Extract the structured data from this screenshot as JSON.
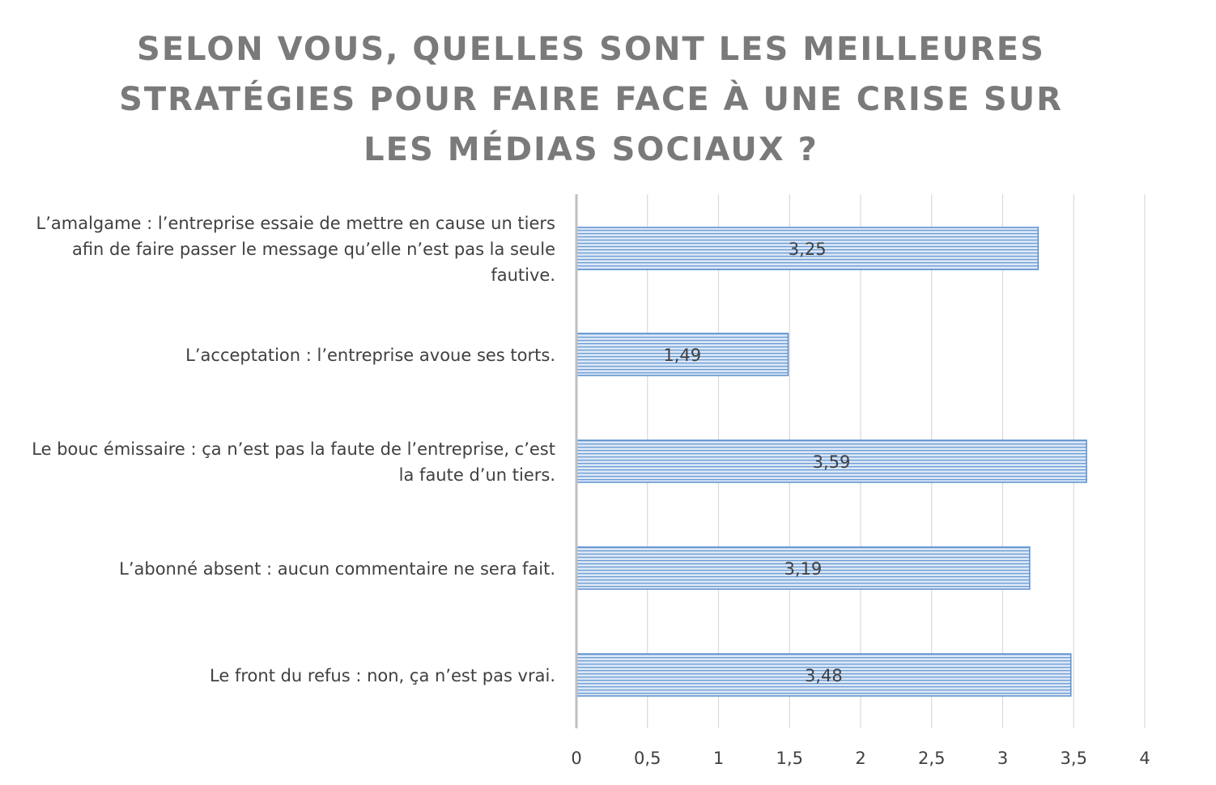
{
  "chart_data": {
    "type": "bar",
    "orientation": "horizontal",
    "title": "SELON VOUS, QUELLES SONT LES MEILLEURES STRATÉGIES POUR FAIRE FACE À UNE CRISE SUR LES MÉDIAS SOCIAUX ?",
    "title_lines": [
      "SELON VOUS, QUELLES SONT LES MEILLEURES",
      "STRATÉGIES POUR FAIRE FACE À UNE CRISE SUR",
      "LES MÉDIAS SOCIAUX ?"
    ],
    "categories": [
      "L’amalgame : l’entreprise essaie de mettre en cause un tiers afin de faire passer le message qu’elle n’est pas la seule fautive.",
      "L’acceptation : l’entreprise avoue ses torts.",
      "Le bouc émissaire : ça n’est pas la faute de l’entreprise, c’est la faute d’un tiers.",
      "L’abonné absent : aucun commentaire ne sera fait.",
      "Le front du refus : non, ça n’est pas vrai."
    ],
    "category_lines": [
      [
        "L’amalgame : l’entreprise essaie de mettre en cause un tiers",
        "afin de faire passer le message qu’elle n’est pas la seule",
        "fautive."
      ],
      [
        "L’acceptation : l’entreprise avoue ses torts."
      ],
      [
        "Le bouc émissaire : ça n’est pas la faute de l’entreprise, c’est",
        "la faute d’un tiers."
      ],
      [
        "L’abonné absent : aucun commentaire ne sera fait."
      ],
      [
        "Le front du refus : non, ça n’est pas vrai."
      ]
    ],
    "values": [
      3.25,
      1.49,
      3.59,
      3.19,
      3.48
    ],
    "data_labels": [
      "3,25",
      "1,49",
      "3,59",
      "3,19",
      "3,48"
    ],
    "xlim": [
      0,
      4
    ],
    "x_ticks": [
      0,
      0.5,
      1,
      1.5,
      2,
      2.5,
      3,
      3.5,
      4
    ],
    "x_tick_labels": [
      "0",
      "0,5",
      "1",
      "1,5",
      "2",
      "2,5",
      "3",
      "3,5",
      "4"
    ],
    "xlabel": "",
    "ylabel": "",
    "grid": true,
    "legend": "none",
    "bar_fill": "#dbe8f7",
    "bar_stripe": "#6b9bd2",
    "bar_border": "#5b8fcf",
    "title_color": "#7a7a7a",
    "text_color": "#404040",
    "grid_color": "#d9d9d9",
    "axis_color": "#bfbfbf"
  }
}
